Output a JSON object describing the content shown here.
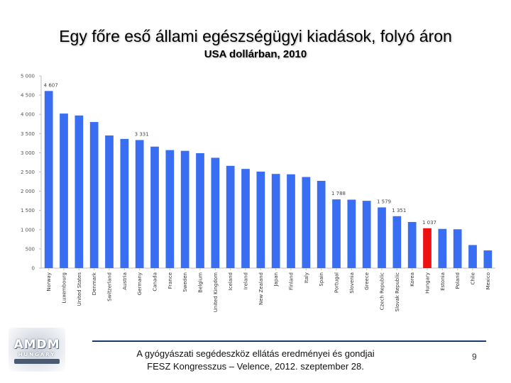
{
  "slide": {
    "title": "Egy főre eső állami egészségügyi kiadások, folyó áron",
    "subtitle": "USA dollárban, 2010",
    "footer_line1": "A gyógyászati segédeszköz ellátás eredményei és gondjai",
    "footer_line2": "FESZ Kongresszus – Velence, 2012. szeptember 28.",
    "page_number": "9"
  },
  "logo": {
    "main": "AMDM",
    "sub": "HUNGARY"
  },
  "colors": {
    "bar": "#3a6ef2",
    "highlight": "#ee1111",
    "axis": "#bfbfbf",
    "rule": "#1a3a6a"
  },
  "chart_data": {
    "type": "bar",
    "title": "Egy főre eső állami egészségügyi kiadások, folyó áron",
    "subtitle": "USA dollárban, 2010",
    "xlabel": "",
    "ylabel": "",
    "ylim": [
      0,
      5000
    ],
    "yticks": [
      0,
      500,
      1000,
      1500,
      2000,
      2500,
      3000,
      3500,
      4000,
      4500,
      5000
    ],
    "ytick_labels": [
      "0",
      "500",
      "1 000",
      "1 500",
      "2 000",
      "2 500",
      "3 000",
      "3 500",
      "4 000",
      "4 500",
      "5 000"
    ],
    "grid": false,
    "categories": [
      "Norway",
      "Luxembourg",
      "United States",
      "Denmark",
      "Switzerland",
      "Austria",
      "Germany",
      "Canada",
      "France",
      "Sweden",
      "Belgium",
      "United Kingdom",
      "Iceland",
      "Ireland",
      "New Zealand",
      "Japan",
      "Finland",
      "Italy",
      "Spain",
      "Portugal",
      "Slovenia",
      "Greece",
      "Czech Republic",
      "Slovak Republic",
      "Korea",
      "Hungary",
      "Estonia",
      "Poland",
      "Chile",
      "Mexico"
    ],
    "values": [
      4607,
      4020,
      3970,
      3800,
      3450,
      3360,
      3331,
      3160,
      3070,
      3050,
      2990,
      2870,
      2660,
      2580,
      2510,
      2450,
      2440,
      2370,
      2270,
      1788,
      1780,
      1750,
      1579,
      1351,
      1200,
      1037,
      1020,
      1010,
      600,
      460
    ],
    "highlight": "Hungary",
    "data_labels": [
      {
        "category": "Norway",
        "text": "4 607"
      },
      {
        "category": "Germany",
        "text": "3 331"
      },
      {
        "category": "Portugal",
        "text": "1 788"
      },
      {
        "category": "Czech Republic",
        "text": "1 579"
      },
      {
        "category": "Slovak Republic",
        "text": "1 351"
      },
      {
        "category": "Hungary",
        "text": "1 037"
      }
    ]
  }
}
